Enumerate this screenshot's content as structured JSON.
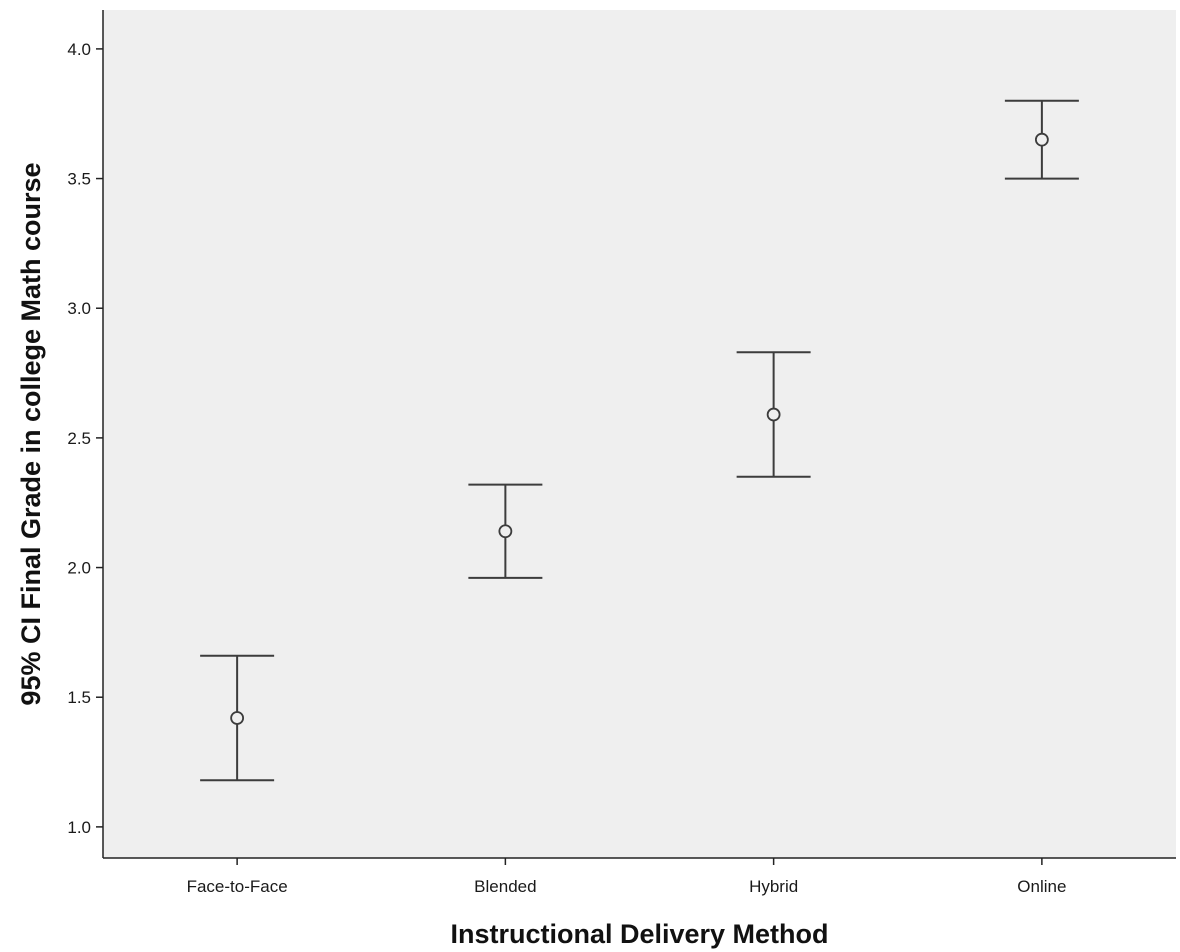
{
  "chart_data": {
    "type": "errorbar",
    "title": "",
    "xlabel": "Instructional Delivery Method",
    "ylabel": "95% CI Final Grade in college Math course",
    "categories": [
      "Face-to-Face",
      "Blended",
      "Hybrid",
      "Online"
    ],
    "means": [
      1.42,
      2.14,
      2.59,
      3.65
    ],
    "ci_lower": [
      1.18,
      1.96,
      2.35,
      3.5
    ],
    "ci_upper": [
      1.66,
      2.32,
      2.83,
      3.8
    ],
    "ylim": [
      0.88,
      4.15
    ],
    "yticks": [
      1.0,
      1.5,
      2.0,
      2.5,
      3.0,
      3.5,
      4.0
    ],
    "ytick_labels": [
      "1.0",
      "1.5",
      "2.0",
      "2.5",
      "3.0",
      "3.5",
      "4.0"
    ],
    "grid": false,
    "legend": "none",
    "colors": {
      "plot_background": "#efefef",
      "marks": "#3c3c3c"
    }
  }
}
